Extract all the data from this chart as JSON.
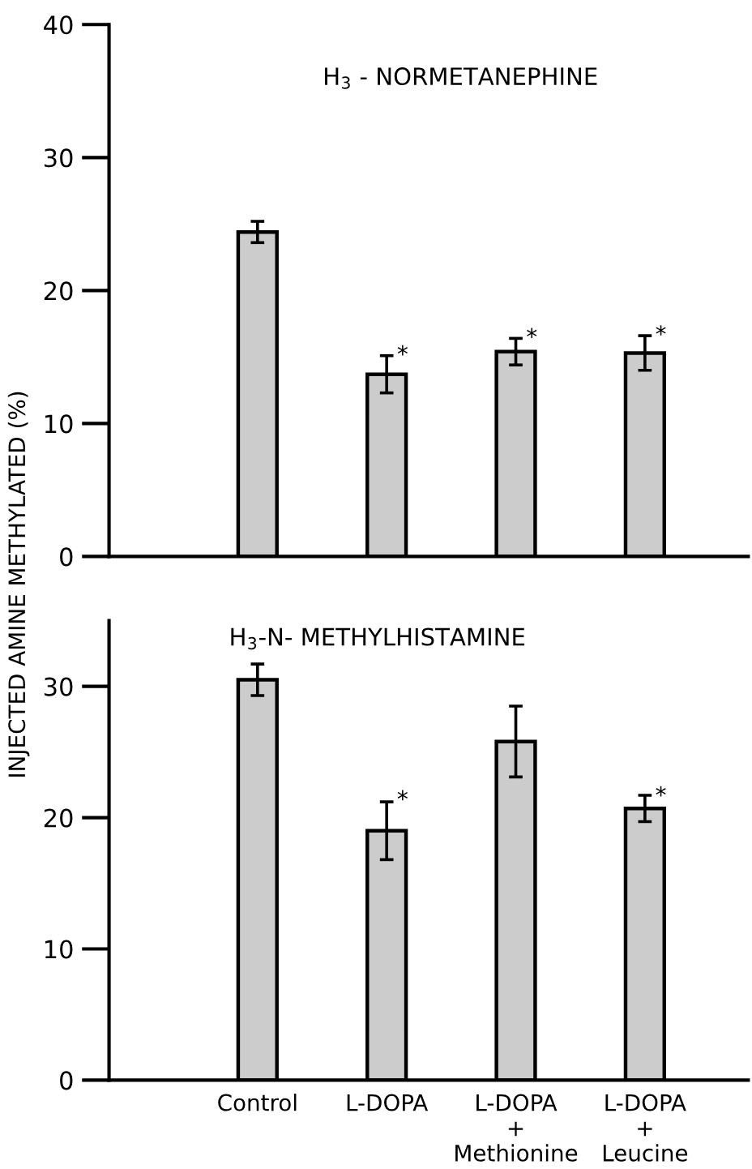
{
  "chart_data": [
    {
      "type": "bar",
      "title": "H$_{3}$ - NORMETANEPHINE",
      "ylabel": "INJECTED AMINE METHYLATED (%)",
      "categories": [
        "Control",
        "L-DOPA",
        "L-DOPA\n+\nMethionine",
        "L-DOPA\n+\nLeucine"
      ],
      "values": [
        24.4,
        13.7,
        15.4,
        15.3
      ],
      "errors": [
        0.8,
        1.4,
        1.0,
        1.3
      ],
      "color": "#cccccc",
      "ylim": [
        0,
        40
      ],
      "yticks": [
        0,
        10,
        20,
        30,
        40
      ],
      "tick_labels": "y",
      "annotations": [
        {
          "text": "*",
          "x": "L-DOPA",
          "y": 15.1
        },
        {
          "text": "*",
          "x": "L-DOPA\n+\nMethionine",
          "y": 16.4
        },
        {
          "text": "*",
          "x": "L-DOPA\n+\nLeucine",
          "y": 16.6
        }
      ]
    },
    {
      "type": "bar",
      "title": "H$_{3}$-N- METHYLHISTAMINE",
      "categories": [
        "Control",
        "L-DOPA",
        "L-DOPA\n+\nMethionine",
        "L-DOPA\n+\nLeucine"
      ],
      "values": [
        30.5,
        19.0,
        25.8,
        20.7
      ],
      "errors": [
        1.2,
        2.2,
        2.7,
        1.0
      ],
      "color": "#cccccc",
      "ylim": [
        0,
        35
      ],
      "yticks": [
        0,
        10,
        20,
        30
      ],
      "annotations": [
        {
          "text": "*",
          "x": "L-DOPA",
          "y": 21.3
        },
        {
          "text": "*",
          "x": "L-DOPA\n+\nLeucine",
          "y": 21.6
        }
      ]
    }
  ]
}
